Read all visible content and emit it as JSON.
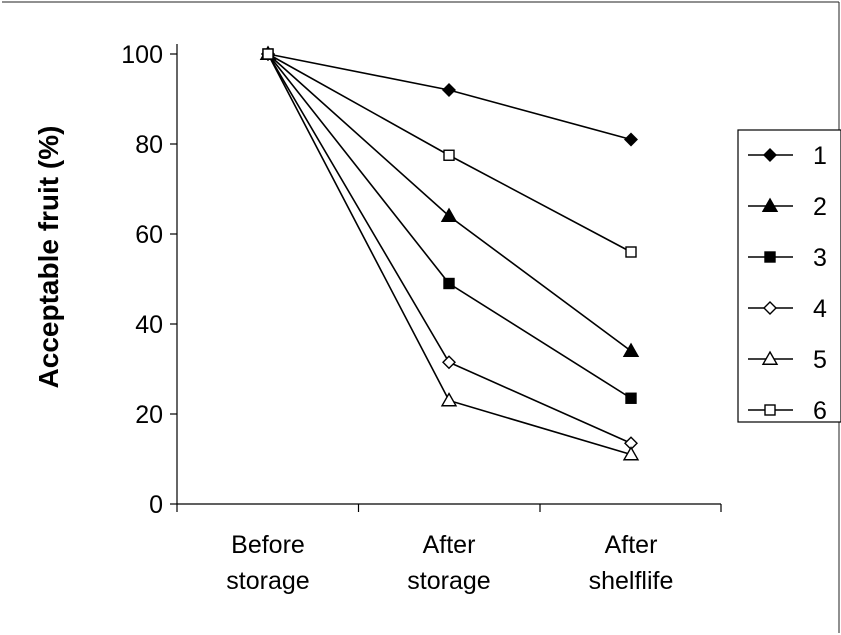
{
  "chart_data": {
    "type": "line",
    "title": "",
    "xlabel": "",
    "ylabel": "Acceptable fruit (%)",
    "ylim": [
      0,
      100
    ],
    "yticks": [
      0,
      20,
      40,
      60,
      80,
      100
    ],
    "categories": [
      "Before storage",
      "After storage",
      "After shelflife"
    ],
    "category_lines": [
      [
        "Before",
        "storage"
      ],
      [
        "After",
        "storage"
      ],
      [
        "After",
        "shelflife"
      ]
    ],
    "grid": false,
    "legend_position": "right",
    "series": [
      {
        "name": "1",
        "marker": "diamond-filled",
        "values": [
          100,
          92,
          81
        ]
      },
      {
        "name": "2",
        "marker": "triangle-filled",
        "values": [
          100,
          64,
          34
        ]
      },
      {
        "name": "3",
        "marker": "square-filled",
        "values": [
          100,
          49,
          23.5
        ]
      },
      {
        "name": "4",
        "marker": "diamond-open",
        "values": [
          100,
          31.5,
          13.5
        ]
      },
      {
        "name": "5",
        "marker": "triangle-open",
        "values": [
          100,
          23,
          11
        ]
      },
      {
        "name": "6",
        "marker": "square-open",
        "values": [
          100,
          77.5,
          56
        ]
      }
    ],
    "colors": {
      "line": "#000000",
      "background": "#ffffff"
    }
  }
}
